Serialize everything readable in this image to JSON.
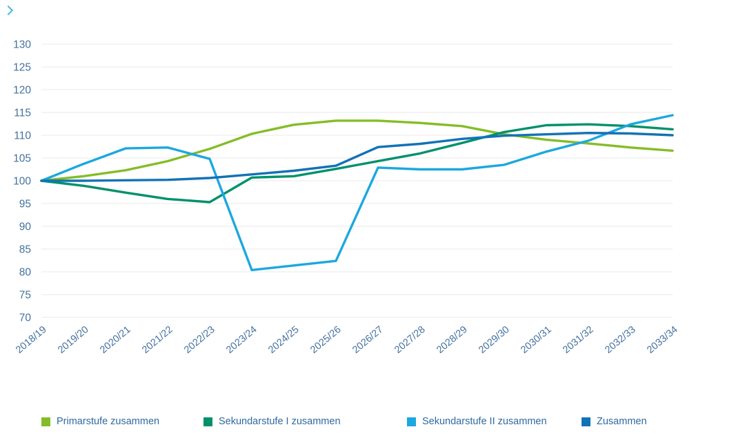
{
  "chart_data": {
    "type": "line",
    "title": "",
    "xlabel": "",
    "ylabel": "",
    "categories": [
      "2018/19",
      "2019/20",
      "2020/21",
      "2021/22",
      "2022/23",
      "2023/24",
      "2024/25",
      "2025/26",
      "2026/27",
      "2027/28",
      "2028/29",
      "2029/30",
      "2030/31",
      "2031/32",
      "2032/33",
      "2033/34"
    ],
    "series": [
      {
        "id": "primarstufe",
        "name": "Primarstufe zusammen",
        "color": "#84BD27",
        "values": [
          100,
          101.0,
          102.3,
          104.3,
          107.0,
          110.3,
          112.3,
          113.2,
          113.2,
          112.7,
          112.0,
          110.2,
          109.0,
          108.2,
          107.3,
          106.6
        ]
      },
      {
        "id": "sekundarstufe-1",
        "name": "Sekundarstufe I zusammen",
        "color": "#00916B",
        "values": [
          100,
          98.9,
          97.4,
          96.0,
          95.3,
          100.7,
          101.0,
          102.6,
          104.3,
          106.0,
          108.3,
          110.7,
          112.2,
          112.4,
          112.0,
          111.3
        ]
      },
      {
        "id": "sekundarstufe-2",
        "name": "Sekundarstufe II zusammen",
        "color": "#1BA8DF",
        "values": [
          100,
          103.7,
          107.1,
          107.3,
          104.8,
          80.4,
          81.4,
          82.4,
          102.9,
          102.5,
          102.5,
          103.5,
          106.4,
          108.8,
          112.4,
          114.4
        ]
      },
      {
        "id": "zusammen",
        "name": "Zusammen",
        "color": "#1272B6",
        "values": [
          100,
          100.0,
          100.1,
          100.2,
          100.6,
          101.4,
          102.2,
          103.3,
          107.4,
          108.1,
          109.2,
          109.9,
          110.2,
          110.5,
          110.4,
          110.0
        ]
      }
    ],
    "ylim": [
      70,
      130
    ],
    "yticks": [
      70,
      75,
      80,
      85,
      90,
      95,
      100,
      105,
      110,
      115,
      120,
      125,
      130
    ],
    "index_base": "2018/19 = 100",
    "grid": "horizontal",
    "legend_position": "bottom",
    "axis_color": "#43719E",
    "grid_color": "#EAEAEA",
    "legend_text_color": "#2E6A9E",
    "line_width": 3.4
  }
}
